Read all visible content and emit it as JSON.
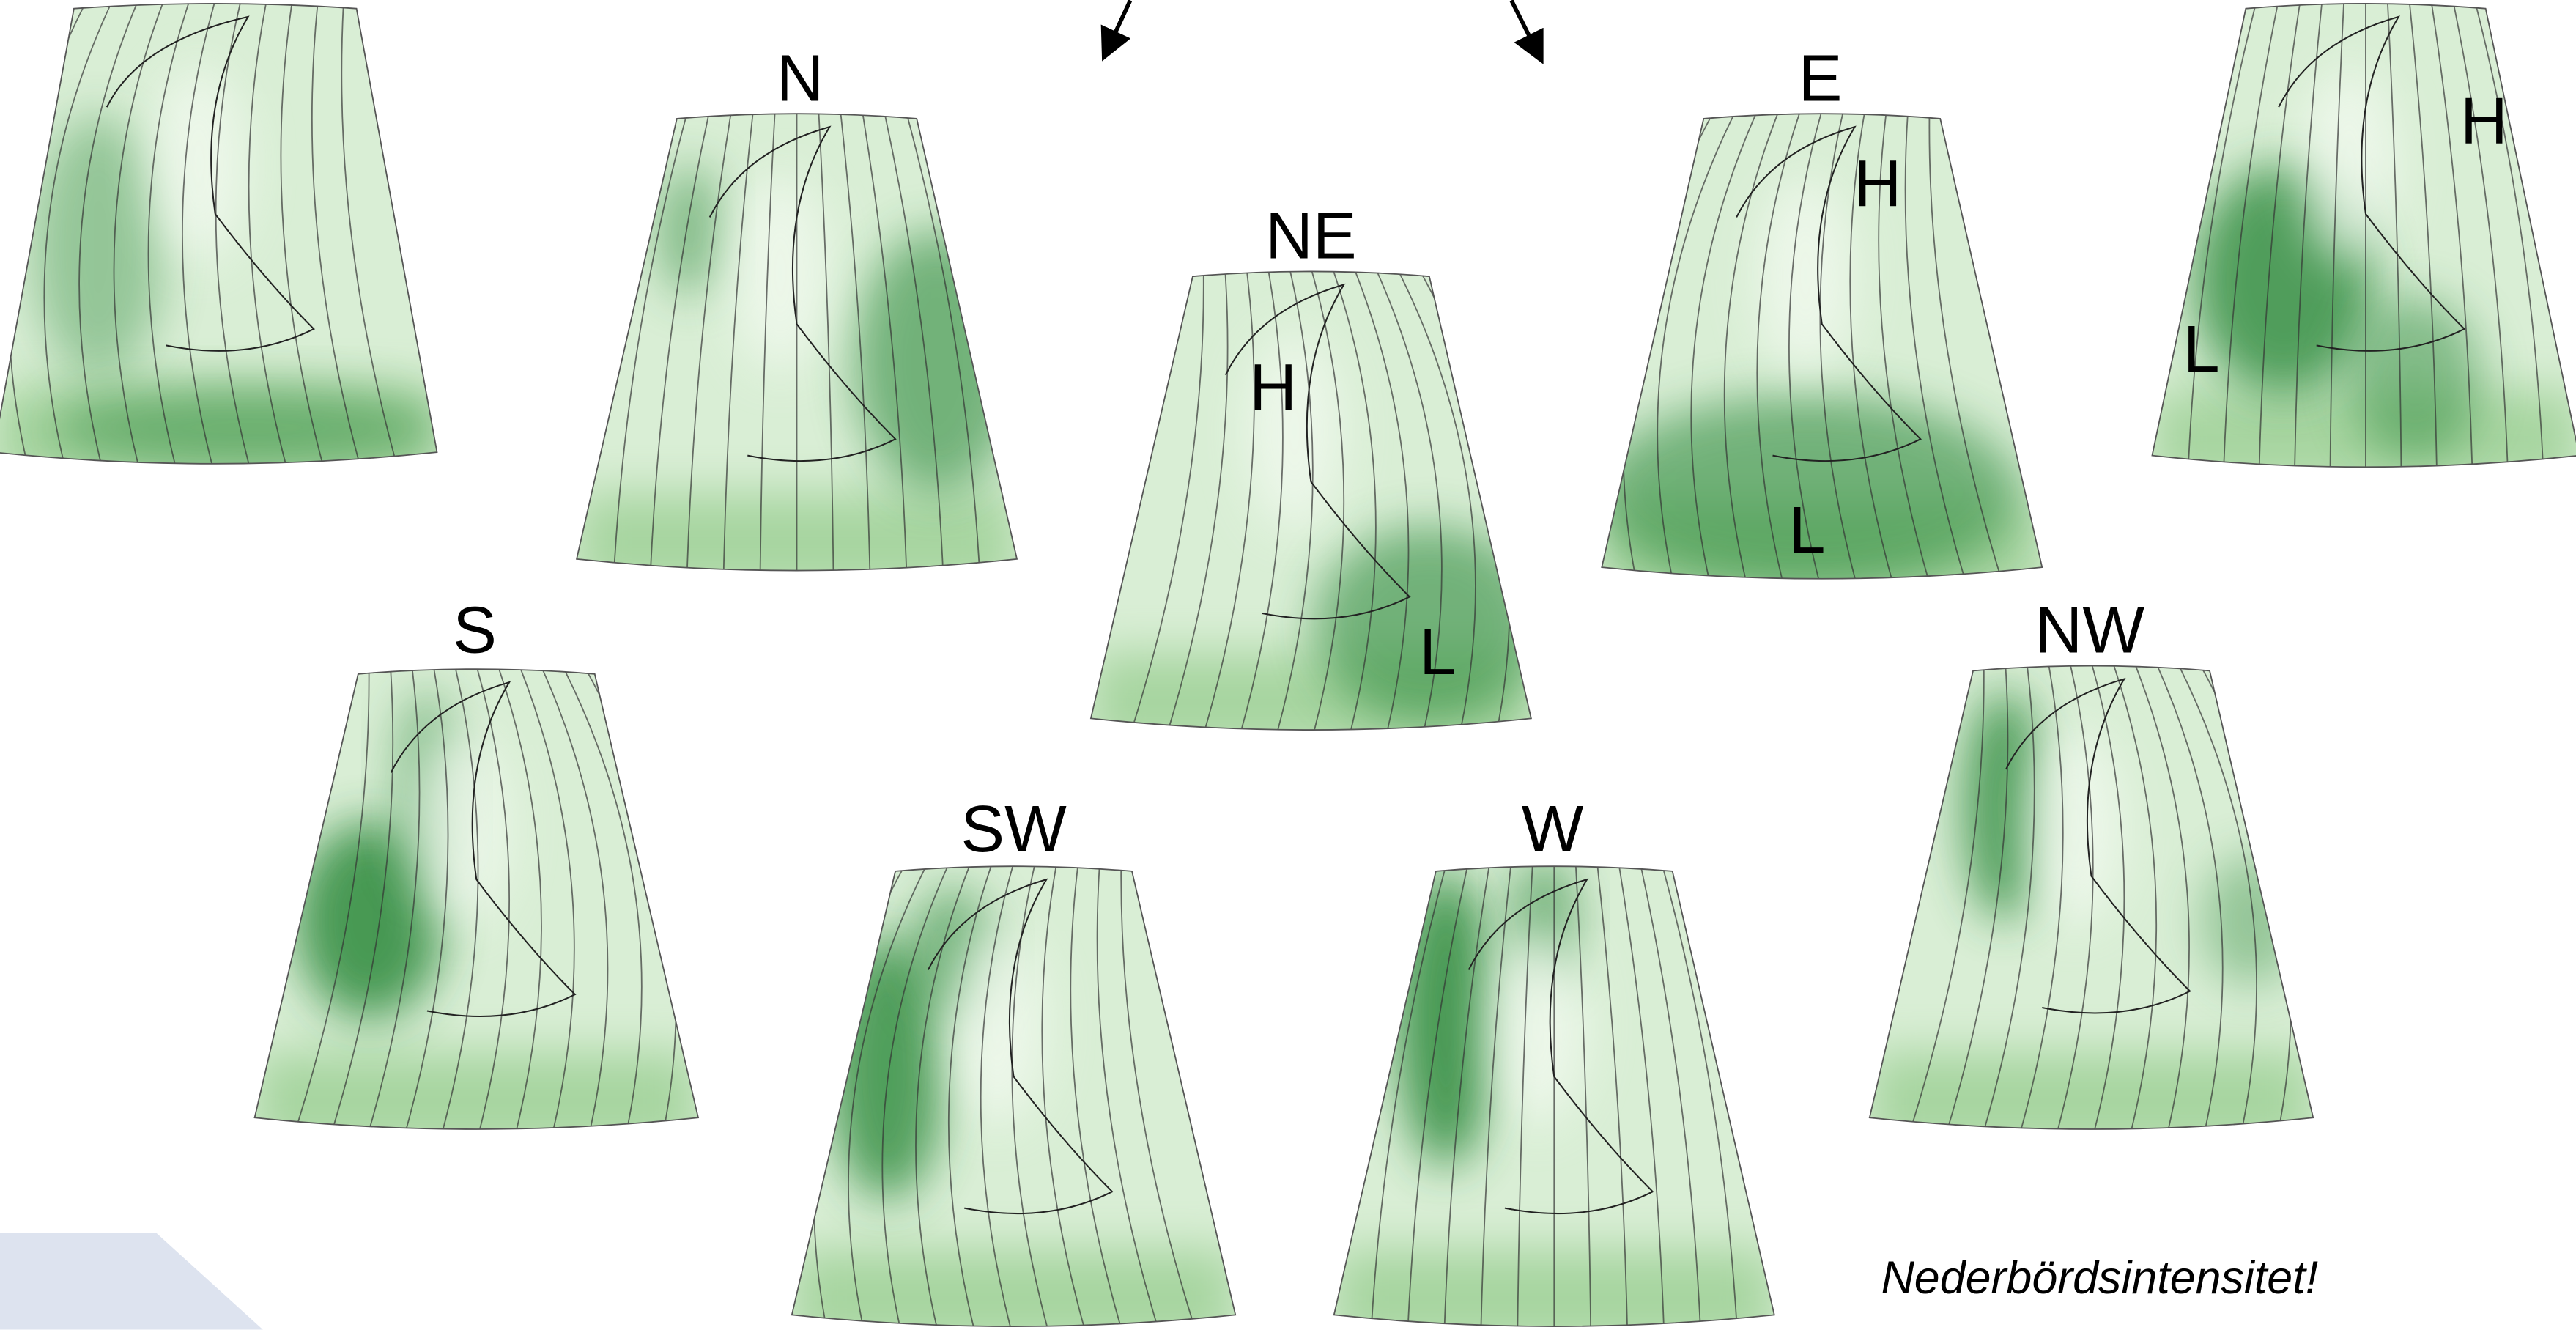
{
  "panels": [
    {
      "label": "N"
    },
    {
      "label": "NE",
      "markers": [
        "H",
        "L"
      ]
    },
    {
      "label": "E",
      "markers": [
        "H",
        "L"
      ]
    },
    {
      "markers": [
        "H",
        "L"
      ]
    },
    {
      "label": "S"
    },
    {
      "label": "SW"
    },
    {
      "label": "W"
    },
    {
      "label": "NW"
    }
  ],
  "note": "Nederbördsintensitet!"
}
